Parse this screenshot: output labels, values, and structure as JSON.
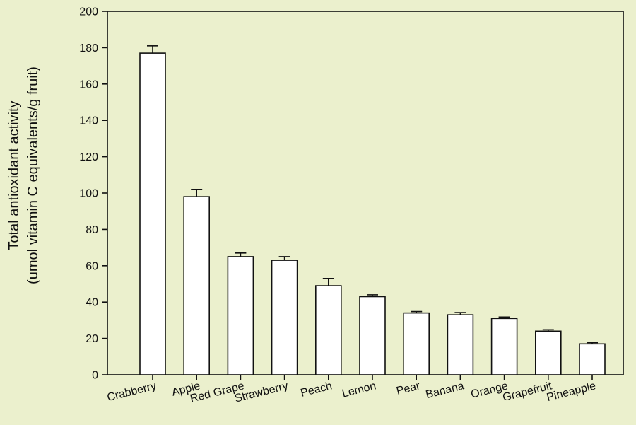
{
  "chart_data": {
    "type": "bar",
    "categories": [
      "Crabberry",
      "Apple",
      "Red Grape",
      "Strawberry",
      "Peach",
      "Lemon",
      "Pear",
      "Banana",
      "Orange",
      "Grapefruit",
      "Pineapple"
    ],
    "values": [
      177,
      98,
      65,
      63,
      49,
      43,
      34,
      33,
      31,
      24,
      17
    ],
    "errors": [
      4,
      4,
      2,
      2,
      4,
      1,
      0.8,
      1.2,
      0.8,
      0.8,
      0.7
    ],
    "ylabel_line1": "Total antioxidant activity",
    "ylabel_line2": "(umol vitamin C equivalents/g fruit)",
    "ylim": [
      0,
      200
    ],
    "yticks": [
      0,
      20,
      40,
      60,
      80,
      100,
      120,
      140,
      160,
      180,
      200
    ],
    "grid": false,
    "colors": {
      "background": "#ebf0cd",
      "bar_fill": "#ffffff",
      "stroke": "#111111"
    }
  }
}
